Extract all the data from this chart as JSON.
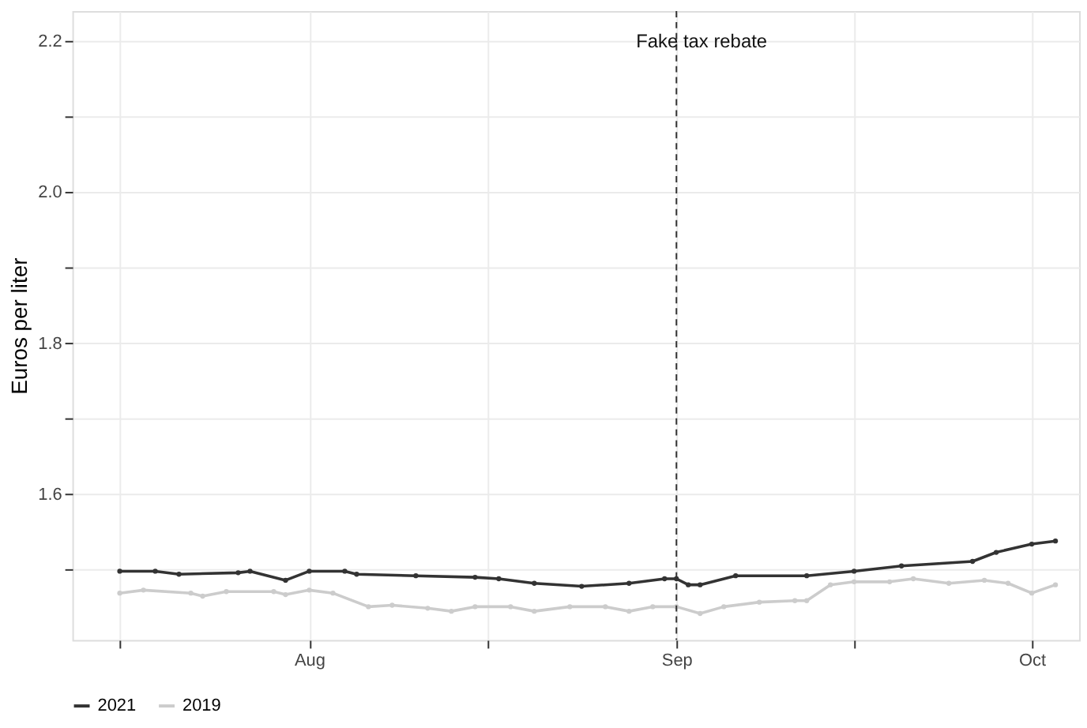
{
  "chart_data": {
    "type": "line",
    "ylabel": "Euros per liter",
    "xlim": [
      "2021-07-12",
      "2021-10-05"
    ],
    "ylim": [
      1.407,
      2.24
    ],
    "xticks": [
      {
        "value": "2021-07-16",
        "label": null
      },
      {
        "value": "2021-08-01",
        "label": "Aug"
      },
      {
        "value": "2021-08-16",
        "label": null
      },
      {
        "value": "2021-09-01",
        "label": "Sep"
      },
      {
        "value": "2021-09-16",
        "label": null
      },
      {
        "value": "2021-10-01",
        "label": "Oct"
      }
    ],
    "yticks": [
      {
        "value": 1.5,
        "label": null
      },
      {
        "value": 1.6,
        "label": "1.6"
      },
      {
        "value": 1.7,
        "label": null
      },
      {
        "value": 1.8,
        "label": "1.8"
      },
      {
        "value": 1.9,
        "label": null
      },
      {
        "value": 2.0,
        "label": "2.0"
      },
      {
        "value": 2.1,
        "label": null
      },
      {
        "value": 2.2,
        "label": "2.2"
      }
    ],
    "grid": true,
    "legend": "bottom",
    "marker": "circle",
    "line_style": "solid",
    "ref_lines": [
      {
        "axis": "x",
        "value": "2021-09-01",
        "label": "Fake tax rebate",
        "color": "#333333",
        "line_style": "dashed"
      }
    ],
    "series": [
      {
        "name": "2021",
        "color": "#333333",
        "x": [
          "2021-07-16",
          "2021-07-19",
          "2021-07-21",
          "2021-07-26",
          "2021-07-27",
          "2021-07-30",
          "2021-08-01",
          "2021-08-04",
          "2021-08-05",
          "2021-08-10",
          "2021-08-15",
          "2021-08-17",
          "2021-08-20",
          "2021-08-24",
          "2021-08-28",
          "2021-08-31",
          "2021-09-01",
          "2021-09-02",
          "2021-09-03",
          "2021-09-06",
          "2021-09-12",
          "2021-09-16",
          "2021-09-20",
          "2021-09-26",
          "2021-09-28",
          "2021-10-01",
          "2021-10-03"
        ],
        "values": [
          1.498,
          1.498,
          1.494,
          1.496,
          1.498,
          1.486,
          1.498,
          1.498,
          1.494,
          1.492,
          1.49,
          1.488,
          1.482,
          1.478,
          1.482,
          1.488,
          1.488,
          1.48,
          1.48,
          1.492,
          1.492,
          1.498,
          1.505,
          1.511,
          1.523,
          1.534,
          1.538
        ]
      },
      {
        "name": "2019",
        "color": "#cccccc",
        "x": [
          "2021-07-16",
          "2021-07-18",
          "2021-07-22",
          "2021-07-23",
          "2021-07-25",
          "2021-07-29",
          "2021-07-30",
          "2021-08-01",
          "2021-08-03",
          "2021-08-06",
          "2021-08-08",
          "2021-08-11",
          "2021-08-13",
          "2021-08-15",
          "2021-08-18",
          "2021-08-20",
          "2021-08-23",
          "2021-08-26",
          "2021-08-28",
          "2021-08-30",
          "2021-09-01",
          "2021-09-03",
          "2021-09-05",
          "2021-09-08",
          "2021-09-11",
          "2021-09-12",
          "2021-09-14",
          "2021-09-16",
          "2021-09-19",
          "2021-09-21",
          "2021-09-24",
          "2021-09-27",
          "2021-09-29",
          "2021-10-01",
          "2021-10-03"
        ],
        "values": [
          1.469,
          1.473,
          1.469,
          1.465,
          1.471,
          1.471,
          1.467,
          1.473,
          1.469,
          1.451,
          1.453,
          1.449,
          1.445,
          1.451,
          1.451,
          1.445,
          1.451,
          1.451,
          1.445,
          1.451,
          1.451,
          1.442,
          1.451,
          1.457,
          1.459,
          1.459,
          1.48,
          1.484,
          1.484,
          1.488,
          1.482,
          1.486,
          1.482,
          1.469,
          1.48
        ]
      }
    ]
  }
}
